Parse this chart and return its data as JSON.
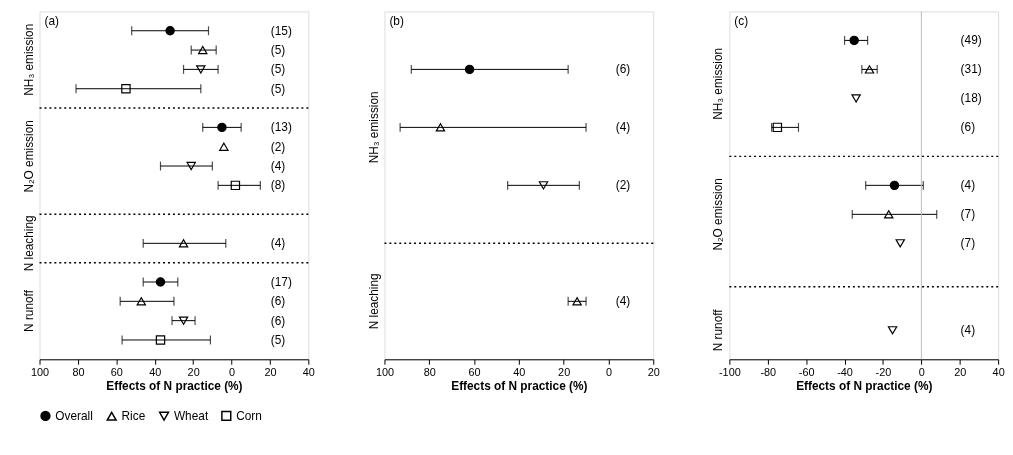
{
  "chart_data": [
    {
      "type": "scatter",
      "orientation": "horizontal",
      "title": "(a)",
      "xlabel": "Effects of N practice (%)",
      "legend": "bottom",
      "xlim": [
        -100,
        40
      ],
      "xticks": [
        {
          "value": -100,
          "label": "100"
        },
        {
          "value": -80,
          "label": "80"
        },
        {
          "value": -60,
          "label": "60"
        },
        {
          "value": -40,
          "label": "40"
        },
        {
          "value": -20,
          "label": "20"
        },
        0,
        20,
        40
      ],
      "categories": [
        "(15)",
        "(5)",
        "(5)",
        "(5)",
        null,
        "(13)",
        "(2)",
        "(4)",
        "(8)",
        null,
        null,
        "(4)",
        null,
        "(17)",
        "(6)",
        "(6)",
        "(5)"
      ],
      "series": [
        {
          "name": "Overall",
          "color": "#000000",
          "marker": "circle",
          "values": [
            -32,
            null,
            null,
            null,
            null,
            -5,
            null,
            null,
            null,
            null,
            null,
            null,
            null,
            -37,
            null,
            null,
            null
          ],
          "errors": [
            [
              -52,
              -12
            ],
            null,
            null,
            null,
            null,
            [
              -15,
              5
            ],
            null,
            null,
            null,
            null,
            null,
            null,
            null,
            [
              -46,
              -28
            ],
            null,
            null,
            null
          ]
        },
        {
          "name": "Rice",
          "color": "#000000",
          "marker": "triangle",
          "values": [
            null,
            -15,
            null,
            null,
            null,
            null,
            -4,
            null,
            null,
            null,
            null,
            -25,
            null,
            null,
            -47,
            null,
            null
          ],
          "errors": [
            null,
            [
              -21,
              -8
            ],
            null,
            null,
            null,
            null,
            null,
            null,
            null,
            null,
            null,
            [
              -46,
              -3
            ],
            null,
            null,
            [
              -58,
              -30
            ],
            null,
            null
          ]
        },
        {
          "name": "Wheat",
          "color": "#000000",
          "marker": "triangle-down",
          "values": [
            null,
            null,
            -16,
            null,
            null,
            null,
            null,
            -21,
            null,
            null,
            null,
            null,
            null,
            null,
            null,
            -25,
            null
          ],
          "errors": [
            null,
            null,
            [
              -25,
              -7
            ],
            null,
            null,
            null,
            null,
            [
              -37,
              -10
            ],
            null,
            null,
            null,
            null,
            null,
            null,
            null,
            [
              -31,
              -19
            ],
            null
          ]
        },
        {
          "name": "Corn",
          "color": "#000000",
          "marker": "square",
          "values": [
            null,
            null,
            null,
            -55,
            null,
            null,
            null,
            null,
            2,
            null,
            null,
            null,
            null,
            null,
            null,
            null,
            -37
          ],
          "errors": [
            null,
            null,
            null,
            [
              -81,
              -16
            ],
            null,
            null,
            null,
            null,
            [
              -7,
              15
            ],
            null,
            null,
            null,
            null,
            null,
            null,
            null,
            [
              -57,
              -11
            ]
          ]
        }
      ],
      "annotations": [
        "NH₃ emission",
        "N₂O emission",
        "N leaching",
        "N runoff"
      ]
    },
    {
      "type": "scatter",
      "orientation": "horizontal",
      "title": "(b)",
      "xlabel": "Effects of N practice (%)",
      "xlim": [
        -100,
        20
      ],
      "xticks": [
        {
          "value": -100,
          "label": "100"
        },
        {
          "value": -80,
          "label": "80"
        },
        {
          "value": -60,
          "label": "60"
        },
        {
          "value": -40,
          "label": "40"
        },
        {
          "value": -20,
          "label": "20"
        },
        0,
        20
      ],
      "categories": [
        "(6)",
        "(4)",
        "(2)",
        null,
        "(4)"
      ],
      "series": [
        {
          "color": "#000000",
          "marker": "circle",
          "values": [
            -62,
            null,
            null,
            null,
            null
          ],
          "errors": [
            [
              -88,
              -18
            ],
            null,
            null,
            null,
            null
          ]
        },
        {
          "color": "#000000",
          "marker": "triangle",
          "values": [
            null,
            -75,
            null,
            null,
            -14
          ],
          "errors": [
            null,
            [
              -93,
              -10
            ],
            null,
            null,
            [
              -18,
              -10
            ]
          ]
        },
        {
          "color": "#000000",
          "marker": "triangle-down",
          "values": [
            null,
            null,
            -29,
            null,
            null
          ],
          "errors": [
            null,
            null,
            [
              -45,
              -13
            ],
            null,
            null
          ]
        }
      ],
      "annotations": [
        "NH₃ emission",
        "N leaching"
      ]
    },
    {
      "type": "scatter",
      "orientation": "horizontal",
      "title": "(c)",
      "xlabel": "Effects of N practice (%)",
      "xlim": [
        -100,
        40
      ],
      "xticks": [
        -100,
        -80,
        -60,
        -40,
        -20,
        0,
        20,
        40
      ],
      "categories": [
        "(49)",
        "(31)",
        "(18)",
        "(6)",
        null,
        "(4)",
        "(7)",
        "(7)",
        null,
        null,
        "(4)"
      ],
      "series": [
        {
          "color": "#000000",
          "marker": "circle",
          "values": [
            -35,
            null,
            null,
            null,
            null,
            -14,
            null,
            null,
            null,
            null,
            null
          ],
          "errors": [
            [
              -40,
              -28
            ],
            null,
            null,
            null,
            null,
            [
              -29,
              1
            ],
            null,
            null,
            null,
            null,
            null
          ]
        },
        {
          "color": "#000000",
          "marker": "triangle",
          "values": [
            null,
            -27,
            null,
            null,
            null,
            null,
            -17,
            null,
            null,
            null,
            null
          ],
          "errors": [
            null,
            [
              -31,
              -23
            ],
            null,
            null,
            null,
            null,
            [
              -36,
              8
            ],
            null,
            null,
            null,
            null
          ]
        },
        {
          "color": "#000000",
          "marker": "triangle-down",
          "values": [
            null,
            null,
            -34,
            null,
            null,
            null,
            null,
            -11,
            null,
            null,
            -15
          ]
        },
        {
          "color": "#000000",
          "marker": "square",
          "values": [
            null,
            null,
            null,
            -75,
            null,
            null,
            null,
            null,
            null,
            null,
            null
          ],
          "errors": [
            null,
            null,
            null,
            [
              -78,
              -64
            ],
            null,
            null,
            null,
            null,
            null,
            null,
            null
          ]
        }
      ],
      "ref_lines": [
        {
          "axis": "x",
          "value": 0,
          "line_style": "solid",
          "color": "#bbbbbb"
        }
      ],
      "annotations": [
        "NH₃ emission",
        "N₂O emission",
        "N runoff"
      ]
    }
  ]
}
